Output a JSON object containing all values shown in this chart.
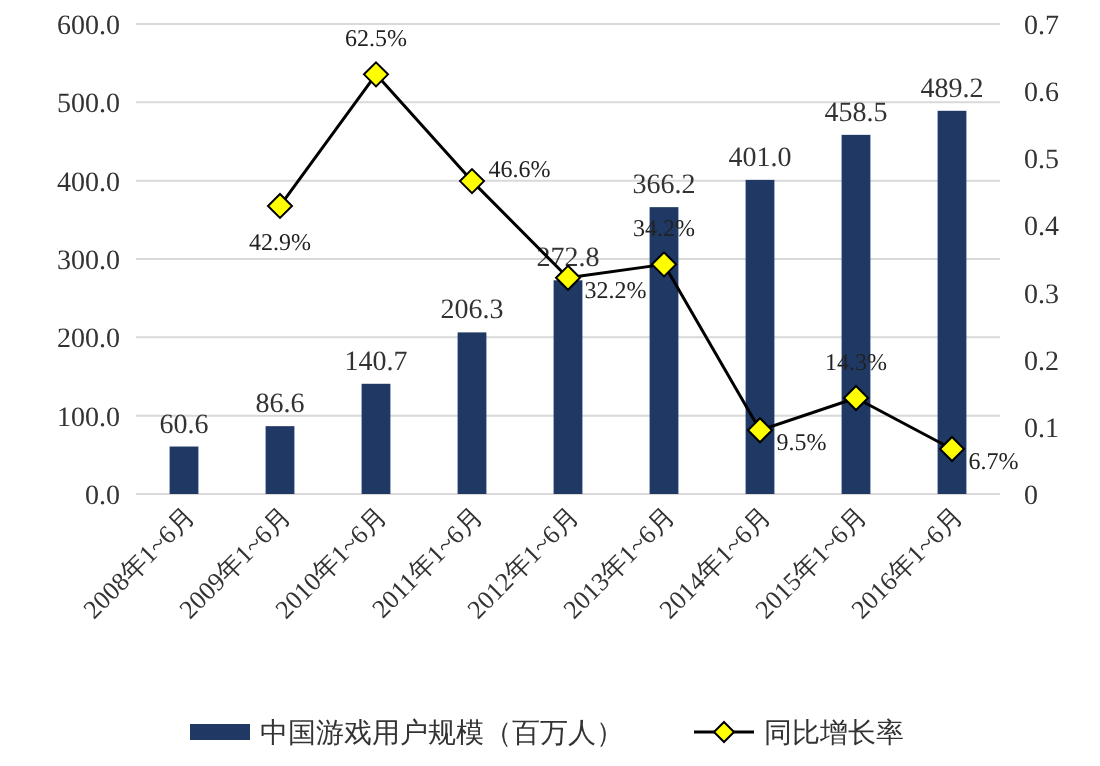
{
  "chart_data": {
    "type": "bar",
    "categories": [
      "2008年1~6月",
      "2009年1~6月",
      "2010年1~6月",
      "2011年1~6月",
      "2012年1~6月",
      "2013年1~6月",
      "2014年1~6月",
      "2015年1~6月",
      "2016年1~6月"
    ],
    "series": [
      {
        "name": "中国游戏用户规模（百万人）",
        "color": "#1f3864",
        "values": [
          60.6,
          86.6,
          140.7,
          206.3,
          272.8,
          366.2,
          401.0,
          458.5,
          489.2
        ],
        "value_labels": [
          "60.6",
          "86.6",
          "140.7",
          "206.3",
          "272.8",
          "366.2",
          "401.0",
          "458.5",
          "489.2"
        ]
      },
      {
        "name": "同比增长率",
        "type": "line",
        "axis": "y2",
        "color": "#000000",
        "marker": "diamond",
        "values": [
          null,
          0.429,
          0.625,
          0.466,
          0.322,
          0.342,
          0.095,
          0.143,
          0.067
        ],
        "value_labels": [
          null,
          "42.9%",
          "62.5%",
          "46.6%",
          "32.2%",
          "34.2%",
          "9.5%",
          "14.3%",
          "6.7%"
        ]
      }
    ],
    "ylim": [
      0,
      600
    ],
    "yticks": [
      {
        "value": 0,
        "label": "0.0"
      },
      {
        "value": 100,
        "label": "100.0"
      },
      {
        "value": 200,
        "label": "200.0"
      },
      {
        "value": 300,
        "label": "300.0"
      },
      {
        "value": 400,
        "label": "400.0"
      },
      {
        "value": 500,
        "label": "500.0"
      },
      {
        "value": 600,
        "label": "600.0"
      }
    ],
    "y2lim": [
      0,
      0.7
    ],
    "y2ticks": [
      0,
      0.1,
      0.2,
      0.3,
      0.4,
      0.5,
      0.6,
      0.7
    ],
    "grid": "y",
    "legend": "bottom"
  }
}
